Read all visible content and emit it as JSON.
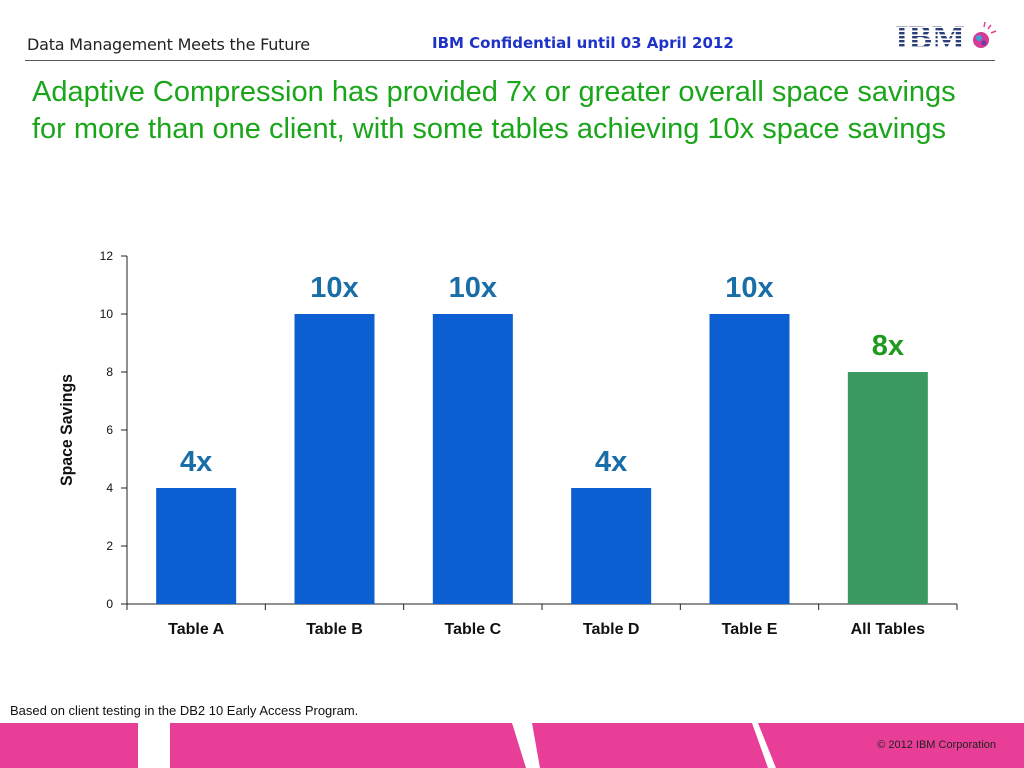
{
  "header": {
    "brand_text": "Data Management Meets the Future",
    "confidential_text": "IBM Confidential until 03 April 2012",
    "logo_text": "IBM"
  },
  "headline": "Adaptive Compression has provided 7x or greater overall space savings for more than one client, with some tables achieving 10x space savings",
  "chart_data": {
    "type": "bar",
    "categories": [
      "Table A",
      "Table B",
      "Table C",
      "Table D",
      "Table E",
      "All Tables"
    ],
    "values": [
      4,
      10,
      10,
      4,
      10,
      8
    ],
    "data_labels": [
      "4x",
      "10x",
      "10x",
      "4x",
      "10x",
      "8x"
    ],
    "bar_colors": [
      "#0b5fd3",
      "#0b5fd3",
      "#0b5fd3",
      "#0b5fd3",
      "#0b5fd3",
      "#3a9a62"
    ],
    "label_colors": [
      "#1a6ea8",
      "#1a6ea8",
      "#1a6ea8",
      "#1a6ea8",
      "#1a6ea8",
      "#1f9a1f"
    ],
    "ylabel": "Space Savings",
    "xlabel": "",
    "ylim": [
      0,
      12
    ],
    "yticks": [
      0,
      2,
      4,
      6,
      8,
      10,
      12
    ],
    "grid": false,
    "legend": "none"
  },
  "footnote": "Based on client testing in the DB2 10 Early Access Program.",
  "footer": {
    "copyright": "© 2012 IBM Corporation",
    "band_color": "#e83e97"
  },
  "colors": {
    "headline": "#1aa51a",
    "confidential": "#1f33c8"
  }
}
